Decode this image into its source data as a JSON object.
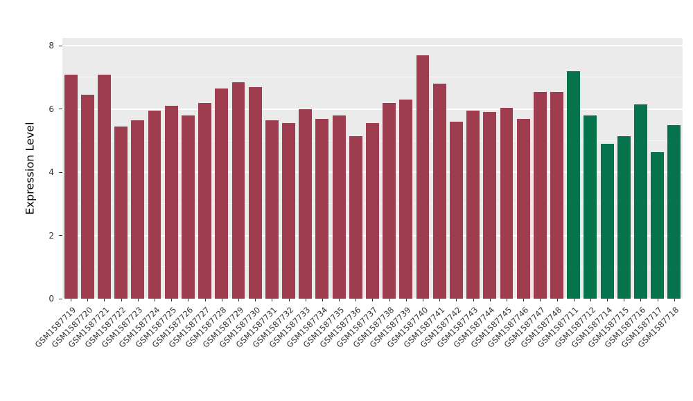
{
  "chart_data": {
    "type": "bar",
    "title": "",
    "xlabel": "",
    "ylabel": "Expression Level",
    "ylim": [
      0,
      8
    ],
    "yticks": [
      0,
      2,
      4,
      6,
      8
    ],
    "yticks_minor": [
      1,
      3,
      5,
      7
    ],
    "legend": "none",
    "grid": "white major and minor lines on gray panel",
    "panel_background": "#EBEBEB",
    "groups": [
      {
        "name": "group-1",
        "color": "#9E3D4F"
      },
      {
        "name": "group-2",
        "color": "#06734D"
      }
    ],
    "bars": [
      {
        "label": "GSM1587719",
        "value": 7.1,
        "group": 0
      },
      {
        "label": "GSM1587720",
        "value": 6.45,
        "group": 0
      },
      {
        "label": "GSM1587721",
        "value": 7.1,
        "group": 0
      },
      {
        "label": "GSM1587722",
        "value": 5.45,
        "group": 0
      },
      {
        "label": "GSM1587723",
        "value": 5.65,
        "group": 0
      },
      {
        "label": "GSM1587724",
        "value": 5.95,
        "group": 0
      },
      {
        "label": "GSM1587725",
        "value": 6.1,
        "group": 0
      },
      {
        "label": "GSM1587726",
        "value": 5.8,
        "group": 0
      },
      {
        "label": "GSM1587727",
        "value": 6.2,
        "group": 0
      },
      {
        "label": "GSM1587728",
        "value": 6.65,
        "group": 0
      },
      {
        "label": "GSM1587729",
        "value": 6.85,
        "group": 0
      },
      {
        "label": "GSM1587730",
        "value": 6.7,
        "group": 0
      },
      {
        "label": "GSM1587731",
        "value": 5.65,
        "group": 0
      },
      {
        "label": "GSM1587732",
        "value": 5.55,
        "group": 0
      },
      {
        "label": "GSM1587733",
        "value": 6.0,
        "group": 0
      },
      {
        "label": "GSM1587734",
        "value": 5.7,
        "group": 0
      },
      {
        "label": "GSM1587735",
        "value": 5.8,
        "group": 0
      },
      {
        "label": "GSM1587736",
        "value": 5.15,
        "group": 0
      },
      {
        "label": "GSM1587737",
        "value": 5.55,
        "group": 0
      },
      {
        "label": "GSM1587738",
        "value": 6.2,
        "group": 0
      },
      {
        "label": "GSM1587739",
        "value": 6.3,
        "group": 0
      },
      {
        "label": "GSM1587740",
        "value": 7.7,
        "group": 0
      },
      {
        "label": "GSM1587741",
        "value": 6.8,
        "group": 0
      },
      {
        "label": "GSM1587742",
        "value": 5.6,
        "group": 0
      },
      {
        "label": "GSM1587743",
        "value": 5.95,
        "group": 0
      },
      {
        "label": "GSM1587744",
        "value": 5.9,
        "group": 0
      },
      {
        "label": "GSM1587745",
        "value": 6.05,
        "group": 0
      },
      {
        "label": "GSM1587746",
        "value": 5.7,
        "group": 0
      },
      {
        "label": "GSM1587747",
        "value": 6.55,
        "group": 0
      },
      {
        "label": "GSM1587748",
        "value": 6.55,
        "group": 0
      },
      {
        "label": "GSM1587711",
        "value": 7.2,
        "group": 1
      },
      {
        "label": "GSM1587712",
        "value": 5.8,
        "group": 1
      },
      {
        "label": "GSM1587714",
        "value": 4.9,
        "group": 1
      },
      {
        "label": "GSM1587715",
        "value": 5.15,
        "group": 1
      },
      {
        "label": "GSM1587716",
        "value": 6.15,
        "group": 1
      },
      {
        "label": "GSM1587717",
        "value": 4.65,
        "group": 1
      },
      {
        "label": "GSM1587718",
        "value": 5.5,
        "group": 1
      }
    ]
  }
}
